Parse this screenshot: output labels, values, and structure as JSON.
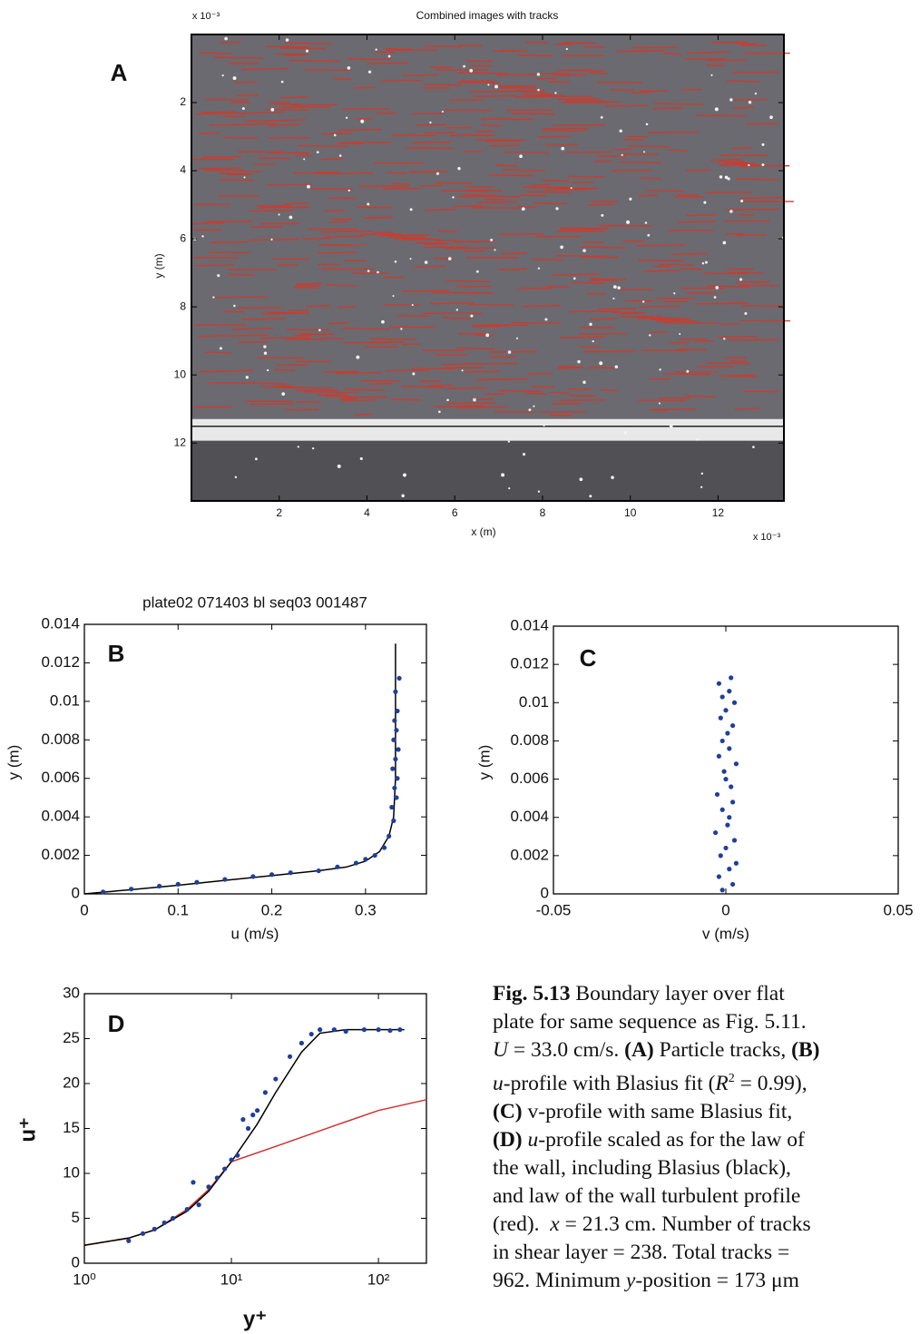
{
  "chart_data": [
    {
      "type": "image",
      "title": "Combined images with tracks",
      "panel_label": "A",
      "x_label": "x (m)",
      "y_label": "y (m)",
      "x_multiplier": "x 10⁻³",
      "y_multiplier": "x 10⁻³",
      "xlim": [
        0,
        13.5
      ],
      "ylim": [
        0,
        13.7
      ],
      "y_reversed": true,
      "xticks": [
        2,
        4,
        6,
        8,
        10,
        12
      ],
      "yticks": [
        2,
        4,
        6,
        8,
        10,
        12
      ]
    },
    {
      "type": "scatter",
      "title": "plate02 071403 bl seq03 001487",
      "panel_label": "B",
      "x_label": "u (m/s)",
      "y_label": "y (m)",
      "xlim": [
        0,
        0.365
      ],
      "ylim": [
        0,
        0.014
      ],
      "xticks": [
        0,
        0.1,
        0.2,
        0.3
      ],
      "yticks": [
        0,
        0.002,
        0.004,
        0.006,
        0.008,
        0.01,
        0.012,
        0.014
      ],
      "series": [
        {
          "mode": "line",
          "color": "#000000",
          "x": [
            0,
            0.05,
            0.1,
            0.15,
            0.2,
            0.25,
            0.28,
            0.3,
            0.315,
            0.325,
            0.33,
            0.332,
            0.332
          ],
          "values": [
            0,
            0.00022,
            0.00045,
            0.0007,
            0.00095,
            0.0012,
            0.0014,
            0.0017,
            0.0022,
            0.003,
            0.004,
            0.006,
            0.013
          ]
        },
        {
          "mode": "markers",
          "color": "#1f3f9a",
          "x": [
            0.02,
            0.05,
            0.08,
            0.1,
            0.12,
            0.15,
            0.18,
            0.2,
            0.22,
            0.25,
            0.27,
            0.29,
            0.3,
            0.31,
            0.32,
            0.325,
            0.33,
            0.328,
            0.333,
            0.331,
            0.334,
            0.329,
            0.332,
            0.335,
            0.33,
            0.333,
            0.331,
            0.334,
            0.332,
            0.336
          ],
          "values": [
            0.0001,
            0.00025,
            0.0004,
            0.0005,
            0.0006,
            0.00075,
            0.0009,
            0.001,
            0.0011,
            0.0012,
            0.0014,
            0.0016,
            0.0018,
            0.002,
            0.0024,
            0.003,
            0.0038,
            0.0045,
            0.005,
            0.0055,
            0.006,
            0.0065,
            0.007,
            0.0075,
            0.008,
            0.0085,
            0.009,
            0.0095,
            0.0105,
            0.0112
          ]
        }
      ]
    },
    {
      "type": "scatter",
      "panel_label": "C",
      "x_label": "v (m/s)",
      "y_label": "y (m)",
      "xlim": [
        -0.05,
        0.05
      ],
      "ylim": [
        0,
        0.014
      ],
      "xticks": [
        -0.05,
        0,
        0.05
      ],
      "yticks": [
        0,
        0.002,
        0.004,
        0.006,
        0.008,
        0.01,
        0.012,
        0.014
      ],
      "series": [
        {
          "mode": "markers",
          "color": "#1f3f9a",
          "x": [
            -0.001,
            0.002,
            -0.002,
            0.001,
            0.003,
            -0.0015,
            0,
            0.0025,
            -0.003,
            0.0005,
            0.001,
            -0.001,
            0.002,
            -0.0025,
            0.0015,
            0,
            -0.0005,
            0.003,
            -0.002,
            0.001,
            -0.001,
            0.0005,
            0.002,
            -0.0015,
            0,
            0.0025,
            -0.001,
            0.001,
            -0.002,
            0.0015
          ],
          "values": [
            0.0002,
            0.0005,
            0.0009,
            0.0013,
            0.0016,
            0.002,
            0.0024,
            0.0028,
            0.0032,
            0.0036,
            0.004,
            0.0044,
            0.0048,
            0.0052,
            0.0056,
            0.006,
            0.0064,
            0.0068,
            0.0072,
            0.0076,
            0.008,
            0.0084,
            0.0088,
            0.0092,
            0.0096,
            0.01,
            0.0103,
            0.0106,
            0.011,
            0.0113
          ]
        }
      ]
    },
    {
      "type": "scatter",
      "panel_label": "D",
      "xscale": "log",
      "x_label": "y⁺",
      "y_label": "u⁺",
      "xlim": [
        1,
        212
      ],
      "ylim": [
        0,
        30
      ],
      "xticks": [
        {
          "value": 1,
          "label": "10⁰"
        },
        {
          "value": 10,
          "label": "10¹"
        },
        {
          "value": 100,
          "label": "10²"
        }
      ],
      "yticks": [
        0,
        5,
        10,
        15,
        20,
        25,
        30
      ],
      "series": [
        {
          "mode": "line",
          "color": "#d03030",
          "x": [
            1,
            2,
            3,
            5,
            7,
            10,
            20,
            50,
            100,
            212
          ],
          "values": [
            2,
            2.8,
            3.7,
            6,
            8.2,
            11.3,
            13,
            15.3,
            17,
            18.2
          ]
        },
        {
          "mode": "line",
          "color": "#000000",
          "x": [
            1,
            2,
            3,
            5,
            7,
            10,
            15,
            20,
            30,
            40,
            60,
            100,
            150
          ],
          "values": [
            2,
            2.8,
            3.7,
            5.8,
            8,
            11.3,
            15.5,
            19,
            23.5,
            25.6,
            26,
            26,
            26
          ]
        },
        {
          "mode": "markers",
          "color": "#1f3f9a",
          "x": [
            2,
            2.5,
            3,
            3.5,
            4,
            5,
            5.5,
            6,
            7,
            8,
            9,
            10,
            11,
            12,
            13,
            14,
            15,
            17,
            20,
            25,
            30,
            35,
            40,
            50,
            60,
            80,
            100,
            120,
            140
          ],
          "values": [
            2.5,
            3.3,
            3.8,
            4.5,
            5,
            6,
            9,
            6.5,
            8.5,
            9.5,
            10.5,
            11.5,
            12,
            16,
            15,
            16.5,
            17,
            19,
            20.5,
            23,
            24.5,
            25.5,
            26,
            26,
            25.8,
            26,
            26,
            25.9,
            26
          ]
        }
      ]
    }
  ],
  "caption": {
    "lines": [
      [
        {
          "t": "Fig. 5.13",
          "b": true
        },
        {
          "t": " Boundary layer over flat"
        }
      ],
      [
        {
          "t": "plate for same sequence as Fig. 5.11."
        }
      ],
      [
        {
          "t": "U",
          "i": true
        },
        {
          "t": " = 33.0 cm/s. "
        },
        {
          "t": "(A)",
          "b": true
        },
        {
          "t": " Particle tracks, "
        },
        {
          "t": "(B)",
          "b": true
        }
      ],
      [
        {
          "t": "u",
          "i": true
        },
        {
          "t": "-profile with Blasius fit ("
        },
        {
          "t": "R",
          "i": true
        },
        {
          "t": "2",
          "sup": true
        },
        {
          "t": " = 0.99),"
        }
      ],
      [
        {
          "t": "(C)",
          "b": true
        },
        {
          "t": " v-profile with same Blasius fit,"
        }
      ],
      [
        {
          "t": "(D)",
          "b": true
        },
        {
          "t": " "
        },
        {
          "t": "u",
          "i": true
        },
        {
          "t": "-profile scaled as for the law of"
        }
      ],
      [
        {
          "t": "the wall, including Blasius (black),"
        }
      ],
      [
        {
          "t": "and law of the wall turbulent profile"
        }
      ],
      [
        {
          "t": "(red).  "
        },
        {
          "t": "x",
          "i": true
        },
        {
          "t": " = 21.3 cm. Number of tracks"
        }
      ],
      [
        {
          "t": "in shear layer = 238. Total tracks ="
        }
      ],
      [
        {
          "t": "962. Minimum "
        },
        {
          "t": "y",
          "i": true
        },
        {
          "t": "-position = 173 μm"
        }
      ]
    ]
  }
}
